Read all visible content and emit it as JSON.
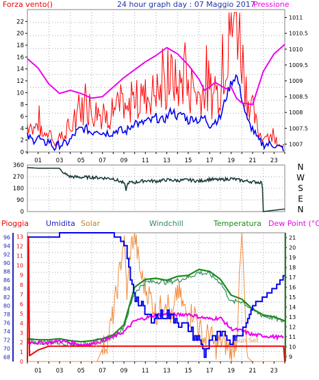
{
  "colors": {
    "wind": "#ff0000",
    "gust": "#ff0000",
    "windLine": "#0000ee",
    "pressure": "#ee00ee",
    "direction": "#1a3a3a",
    "rain": "#ee0000",
    "humidity": "#0000ee",
    "solar": "#f08a3a",
    "windchill": "#2e8b57",
    "temperature": "#1a8a1a",
    "dewpoint": "#ee00ee",
    "grid": "#9aa6aa",
    "axis": "#000000",
    "border": "#808080"
  },
  "top": {
    "wind_label": "Forza vento()",
    "title": "24 hour graph day : 07 Maggio 2017",
    "pressure_label": "Pressione",
    "wind_ticks": [
      "0",
      "2",
      "4",
      "6",
      "8",
      "10",
      "12",
      "14",
      "16",
      "18",
      "20",
      "22"
    ],
    "pressure_ticks": [
      "1007",
      "1007.5",
      "1008",
      "1008.5",
      "1009",
      "1009.5",
      "1010",
      "1010.5",
      "1011"
    ],
    "hour_ticks": [
      "01",
      "03",
      "05",
      "07",
      "09",
      "11",
      "13",
      "15",
      "17",
      "19",
      "21",
      "23"
    ]
  },
  "middle": {
    "dir_ticks": [
      "0",
      "90",
      "180",
      "270",
      "360"
    ],
    "compass": [
      "N",
      "W",
      "S",
      "E",
      "N"
    ]
  },
  "bottom": {
    "legend": {
      "rain": "Pioggia",
      "humidity": "Umidita",
      "solar": "Solar",
      "windchill": "Windchill",
      "temperature": "Temperatura",
      "dewpoint": "Dew Point (°C)"
    },
    "rain_ticks": [
      "0",
      "1",
      "2",
      "3",
      "4",
      "5",
      "6",
      "7",
      "8",
      "9",
      "10",
      "11",
      "12",
      "13"
    ],
    "humidity_ticks": [
      "68",
      "70",
      "72",
      "74",
      "76",
      "78",
      "80",
      "82",
      "84",
      "86",
      "88",
      "90",
      "92",
      "94",
      "96"
    ],
    "temp_ticks": [
      "9",
      "10",
      "11",
      "12",
      "13",
      "14",
      "15",
      "16",
      "17",
      "18",
      "19",
      "20",
      "21"
    ],
    "hour_ticks": [
      "01",
      "03",
      "05",
      "07",
      "09",
      "11",
      "13",
      "15",
      "17",
      "19",
      "21",
      "23"
    ],
    "sun_rise": "07",
    "sun_set": "Sun Set",
    "x19": "19"
  },
  "chart_data": [
    {
      "type": "line",
      "title": "24 hour graph day : 07 Maggio 2017",
      "xlabel": "",
      "xlim": [
        0,
        24
      ],
      "series": [
        {
          "name": "Forza vento()",
          "axis": "left",
          "ylim": [
            0,
            24
          ],
          "x": [
            0,
            0.5,
            1,
            1.5,
            2,
            2.5,
            3,
            3.5,
            4,
            4.5,
            5,
            5.5,
            6,
            6.5,
            7,
            7.5,
            8,
            8.5,
            9,
            9.5,
            10,
            10.5,
            11,
            11.5,
            12,
            12.5,
            13,
            13.5,
            14,
            14.5,
            15,
            15.5,
            16,
            16.5,
            17,
            17.5,
            18,
            18.5,
            19,
            19.5,
            20,
            20.5,
            21,
            21.5,
            22,
            22.5,
            23,
            23.5,
            24
          ],
          "y": [
            4,
            3,
            4,
            2,
            3,
            1,
            2,
            2,
            3,
            5,
            6,
            6,
            5,
            6,
            5,
            5,
            5,
            6,
            5,
            6,
            8,
            7,
            8,
            8,
            9,
            8,
            9,
            11,
            9,
            10,
            8,
            9,
            8,
            9,
            7,
            8,
            9,
            14,
            18,
            20,
            14,
            8,
            6,
            3,
            2,
            2,
            2,
            1,
            1
          ]
        },
        {
          "name": "Pressione",
          "axis": "right",
          "ylim": [
            1006.75,
            1011.25
          ],
          "x": [
            0,
            1,
            2,
            3,
            4,
            5,
            6,
            7,
            8,
            9,
            10,
            11,
            12,
            13,
            14,
            15,
            16,
            16.5,
            17,
            17.5,
            18,
            18.5,
            19,
            19.5,
            20,
            21,
            22,
            23,
            24
          ],
          "y": [
            1009.7,
            1009.4,
            1008.9,
            1008.6,
            1008.7,
            1008.6,
            1008.45,
            1008.5,
            1008.8,
            1009.1,
            1009.35,
            1009.6,
            1009.8,
            1010.05,
            1009.85,
            1009.5,
            1009.05,
            1008.7,
            1008.8,
            1008.95,
            1008.85,
            1008.75,
            1008.8,
            1008.45,
            1008.3,
            1008.25,
            1009.3,
            1009.85,
            1010.15
          ]
        }
      ]
    },
    {
      "type": "line",
      "title": "",
      "ylim": [
        0,
        360
      ],
      "series": [
        {
          "name": "",
          "x": [
            0,
            1,
            2,
            3,
            3.3,
            4,
            5,
            6,
            7,
            8,
            9,
            9.2,
            9.4,
            10,
            11,
            12,
            13,
            14,
            15,
            16,
            17,
            18,
            19,
            20,
            21,
            21.9,
            22,
            24
          ],
          "y": [
            340,
            335,
            335,
            335,
            300,
            270,
            265,
            265,
            260,
            255,
            220,
            170,
            225,
            225,
            240,
            235,
            245,
            240,
            245,
            235,
            250,
            245,
            255,
            240,
            230,
            225,
            0,
            20
          ]
        }
      ]
    },
    {
      "type": "line",
      "title": "",
      "xlim": [
        0,
        24
      ],
      "series": [
        {
          "name": "Umidita",
          "axis": "left",
          "ylim": [
            67,
            97
          ],
          "x": [
            0,
            1,
            2,
            3,
            4,
            5,
            6,
            7,
            8,
            9,
            9.5,
            10,
            11,
            12,
            13,
            14,
            15,
            16,
            16.5,
            17,
            18,
            19,
            20,
            21,
            22,
            23,
            24
          ],
          "y": [
            96,
            96,
            96,
            96.5,
            96.5,
            96.5,
            96.5,
            96.5,
            96.5,
            95,
            88,
            82,
            78,
            77,
            78,
            76.5,
            74.5,
            72,
            69,
            72,
            73,
            72,
            74,
            80,
            82,
            84,
            87
          ]
        },
        {
          "name": "Temperatura",
          "axis": "right",
          "ylim": [
            8.5,
            21.5
          ],
          "x": [
            0,
            1,
            2,
            3,
            4,
            5,
            6,
            7,
            8,
            9,
            10,
            11,
            12,
            13,
            14,
            15,
            16,
            17,
            18,
            19,
            20,
            21,
            22,
            23,
            24
          ],
          "y": [
            10.8,
            10.7,
            10.7,
            10.8,
            10.6,
            10.5,
            10.6,
            10.8,
            11.2,
            12.2,
            16,
            16.8,
            16.9,
            16.7,
            17.1,
            17.2,
            17.8,
            17.6,
            16.8,
            15.2,
            14.8,
            13.8,
            13.2,
            13.0,
            12.6
          ]
        },
        {
          "name": "Windchill",
          "axis": "right",
          "ylim": [
            8.5,
            21.5
          ],
          "x": [
            0,
            1,
            2,
            3,
            4,
            5,
            6,
            7,
            8,
            9,
            10,
            11,
            12,
            13,
            14,
            15,
            16,
            17,
            18,
            19,
            20,
            21,
            22,
            23,
            24
          ],
          "y": [
            10.6,
            10.4,
            10.5,
            10.4,
            10.3,
            10.2,
            10.4,
            10.7,
            11.0,
            12.0,
            15.5,
            16.5,
            16.6,
            16.5,
            16.7,
            17.0,
            17.5,
            17.3,
            16.5,
            14.5,
            14.6,
            13.7,
            13.1,
            12.9,
            12.5
          ]
        },
        {
          "name": "Dew Point (°C)",
          "axis": "right",
          "ylim": [
            8.5,
            21.5
          ],
          "x": [
            0,
            1,
            2,
            3,
            4,
            5,
            6,
            7,
            8,
            9,
            10,
            11,
            12,
            13,
            14,
            15,
            16,
            17,
            18,
            19,
            20,
            21,
            22,
            23,
            24
          ],
          "y": [
            10.5,
            10.4,
            10.4,
            10.6,
            10.4,
            10.2,
            10.3,
            10.6,
            11.0,
            11.5,
            12.6,
            12.9,
            13.2,
            13.3,
            13.2,
            13.3,
            13.0,
            12.8,
            12.9,
            11.8,
            11.6,
            11.2,
            11.1,
            11.0,
            10.9
          ]
        },
        {
          "name": "Solar",
          "axis": "left",
          "ylim": [
            67,
            97
          ],
          "x": [
            0,
            1,
            2,
            3,
            4,
            5,
            6,
            6.5,
            7,
            7.5,
            8,
            8.5,
            9,
            9.3,
            9.6,
            10,
            10.5,
            11,
            11.5,
            12,
            12.5,
            13,
            13.5,
            14,
            14.5,
            15,
            15.5,
            16,
            16.5,
            17,
            17.5,
            18,
            18.5,
            19,
            19.5,
            20,
            20.5,
            21
          ],
          "y": [
            67,
            67,
            67,
            67,
            67,
            67,
            67,
            67,
            70,
            72,
            78,
            86,
            96,
            82,
            93,
            97,
            88,
            84,
            82,
            78,
            80,
            82,
            76,
            84,
            80,
            77,
            79,
            75,
            72,
            74,
            70,
            72,
            71,
            69,
            72,
            97,
            68,
            67
          ]
        },
        {
          "name": "Pioggia",
          "axis": "left",
          "ylim": [
            0,
            13.4
          ],
          "x": [
            0,
            0.1,
            0.2,
            1,
            2,
            3,
            4,
            6,
            8,
            10,
            12,
            14,
            16,
            18,
            20,
            22,
            23.9,
            24
          ],
          "y": [
            0,
            13,
            0.6,
            1.2,
            1.6,
            1.6,
            1.6,
            1.6,
            1.6,
            1.6,
            1.6,
            1.6,
            1.6,
            1.6,
            1.6,
            1.6,
            1.6,
            0
          ]
        }
      ]
    }
  ]
}
